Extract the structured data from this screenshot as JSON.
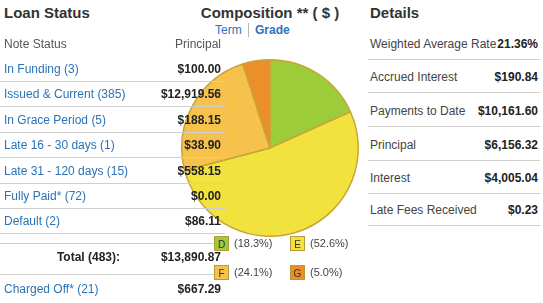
{
  "loan_status": {
    "title": "Loan Status",
    "columns": [
      "Note Status",
      "Principal"
    ],
    "rows": [
      {
        "label": "In Funding (3)",
        "principal": "$100.00"
      },
      {
        "label": "Issued & Current (385)",
        "principal": "$12,919.56"
      },
      {
        "label": "In Grace Period (5)",
        "principal": "$188.15"
      },
      {
        "label": "Late 16 - 30 days (1)",
        "principal": "$38.90"
      },
      {
        "label": "Late 31 - 120 days (15)",
        "principal": "$558.15"
      },
      {
        "label": "Fully Paid* (72)",
        "principal": "$0.00"
      },
      {
        "label": "Default (2)",
        "principal": "$86.11"
      }
    ],
    "total": {
      "label": "Total (483):",
      "principal": "$13,890.87"
    },
    "charged_off": {
      "label": "Charged Off* (21)",
      "principal": "$667.29"
    }
  },
  "composition_tabs": [
    "Term",
    "Grade"
  ],
  "chart_data": {
    "type": "pie",
    "title": "Composition ** ( $ )",
    "categories": [
      "D",
      "E",
      "F",
      "G"
    ],
    "values": [
      18.3,
      52.6,
      24.1,
      5.0
    ],
    "value_labels": [
      "(18.3%)",
      "(52.6%)",
      "(24.1%)",
      "(5.0%)"
    ],
    "colors": [
      "#9ccc3a",
      "#f2e23e",
      "#f6c24c",
      "#ea8f2a"
    ],
    "legend": "bottom"
  },
  "details": {
    "title": "Details",
    "rows": [
      {
        "label": "Weighted Average Rate",
        "value": "21.36%"
      },
      {
        "label": "Accrued Interest",
        "value": "$190.84"
      },
      {
        "label": "Payments to Date",
        "value": "$10,161.60"
      },
      {
        "label": "Principal",
        "value": "$6,156.32"
      },
      {
        "label": "Interest",
        "value": "$4,005.04"
      },
      {
        "label": "Late Fees Received",
        "value": "$0.23"
      }
    ]
  }
}
